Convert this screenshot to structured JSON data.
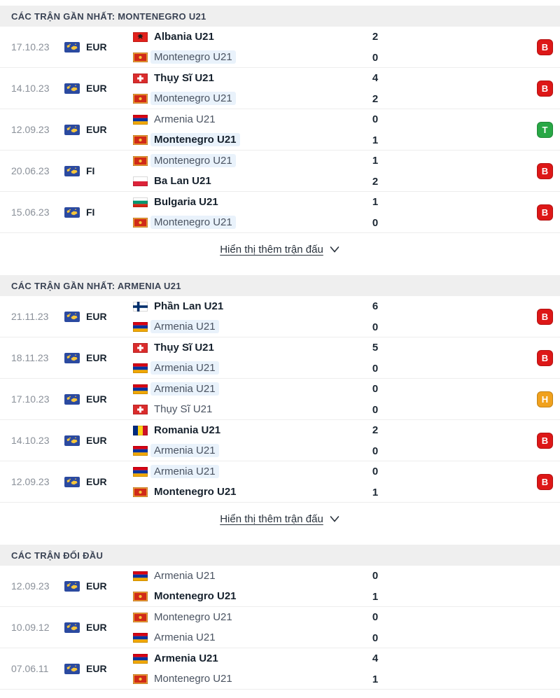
{
  "labels": {
    "show_more": "Hiển thị thêm trận đấu"
  },
  "colors": {
    "result_loss": "#dd1717",
    "result_win": "#28a745",
    "result_draw": "#f0a11d",
    "highlight_bg": "#e9f2fb",
    "header_bg": "#efefef"
  },
  "sections": [
    {
      "title": "CÁC TRẬN GẦN NHẤT: MONTENEGRO U21",
      "show_more": true,
      "matches": [
        {
          "date": "17.10.23",
          "competition": "EUR",
          "result": "B",
          "teams": [
            {
              "name": "Albania U21",
              "flag": "albania",
              "winner": true,
              "highlight": false,
              "score": "2"
            },
            {
              "name": "Montenegro U21",
              "flag": "montenegro",
              "winner": false,
              "highlight": true,
              "score": "0"
            }
          ]
        },
        {
          "date": "14.10.23",
          "competition": "EUR",
          "result": "B",
          "teams": [
            {
              "name": "Thụy Sĩ U21",
              "flag": "switzerland",
              "winner": true,
              "highlight": false,
              "score": "4"
            },
            {
              "name": "Montenegro U21",
              "flag": "montenegro",
              "winner": false,
              "highlight": true,
              "score": "2"
            }
          ]
        },
        {
          "date": "12.09.23",
          "competition": "EUR",
          "result": "T",
          "teams": [
            {
              "name": "Armenia U21",
              "flag": "armenia",
              "winner": false,
              "highlight": false,
              "score": "0"
            },
            {
              "name": "Montenegro U21",
              "flag": "montenegro",
              "winner": true,
              "highlight": true,
              "score": "1"
            }
          ]
        },
        {
          "date": "20.06.23",
          "competition": "FI",
          "result": "B",
          "teams": [
            {
              "name": "Montenegro U21",
              "flag": "montenegro",
              "winner": false,
              "highlight": true,
              "score": "1"
            },
            {
              "name": "Ba Lan U21",
              "flag": "poland",
              "winner": true,
              "highlight": false,
              "score": "2"
            }
          ]
        },
        {
          "date": "15.06.23",
          "competition": "FI",
          "result": "B",
          "teams": [
            {
              "name": "Bulgaria U21",
              "flag": "bulgaria",
              "winner": true,
              "highlight": false,
              "score": "1"
            },
            {
              "name": "Montenegro U21",
              "flag": "montenegro",
              "winner": false,
              "highlight": true,
              "score": "0"
            }
          ]
        }
      ]
    },
    {
      "title": "CÁC TRẬN GẦN NHẤT: ARMENIA U21",
      "show_more": true,
      "matches": [
        {
          "date": "21.11.23",
          "competition": "EUR",
          "result": "B",
          "teams": [
            {
              "name": "Phần Lan U21",
              "flag": "finland",
              "winner": true,
              "highlight": false,
              "score": "6"
            },
            {
              "name": "Armenia U21",
              "flag": "armenia",
              "winner": false,
              "highlight": true,
              "score": "0"
            }
          ]
        },
        {
          "date": "18.11.23",
          "competition": "EUR",
          "result": "B",
          "teams": [
            {
              "name": "Thụy Sĩ U21",
              "flag": "switzerland",
              "winner": true,
              "highlight": false,
              "score": "5"
            },
            {
              "name": "Armenia U21",
              "flag": "armenia",
              "winner": false,
              "highlight": true,
              "score": "0"
            }
          ]
        },
        {
          "date": "17.10.23",
          "competition": "EUR",
          "result": "H",
          "teams": [
            {
              "name": "Armenia U21",
              "flag": "armenia",
              "winner": false,
              "highlight": true,
              "score": "0"
            },
            {
              "name": "Thụy Sĩ U21",
              "flag": "switzerland",
              "winner": false,
              "highlight": false,
              "score": "0"
            }
          ]
        },
        {
          "date": "14.10.23",
          "competition": "EUR",
          "result": "B",
          "teams": [
            {
              "name": "Romania U21",
              "flag": "romania",
              "winner": true,
              "highlight": false,
              "score": "2"
            },
            {
              "name": "Armenia U21",
              "flag": "armenia",
              "winner": false,
              "highlight": true,
              "score": "0"
            }
          ]
        },
        {
          "date": "12.09.23",
          "competition": "EUR",
          "result": "B",
          "teams": [
            {
              "name": "Armenia U21",
              "flag": "armenia",
              "winner": false,
              "highlight": true,
              "score": "0"
            },
            {
              "name": "Montenegro U21",
              "flag": "montenegro",
              "winner": true,
              "highlight": false,
              "score": "1"
            }
          ]
        }
      ]
    },
    {
      "title": "CÁC TRẬN ĐỐI ĐẦU",
      "show_more": false,
      "matches": [
        {
          "date": "12.09.23",
          "competition": "EUR",
          "result": null,
          "teams": [
            {
              "name": "Armenia U21",
              "flag": "armenia",
              "winner": false,
              "highlight": false,
              "score": "0"
            },
            {
              "name": "Montenegro U21",
              "flag": "montenegro",
              "winner": true,
              "highlight": false,
              "score": "1"
            }
          ]
        },
        {
          "date": "10.09.12",
          "competition": "EUR",
          "result": null,
          "teams": [
            {
              "name": "Montenegro U21",
              "flag": "montenegro",
              "winner": false,
              "highlight": false,
              "score": "0"
            },
            {
              "name": "Armenia U21",
              "flag": "armenia",
              "winner": false,
              "highlight": false,
              "score": "0"
            }
          ]
        },
        {
          "date": "07.06.11",
          "competition": "EUR",
          "result": null,
          "teams": [
            {
              "name": "Armenia U21",
              "flag": "armenia",
              "winner": true,
              "highlight": false,
              "score": "4"
            },
            {
              "name": "Montenegro U21",
              "flag": "montenegro",
              "winner": false,
              "highlight": false,
              "score": "1"
            }
          ]
        }
      ]
    }
  ]
}
